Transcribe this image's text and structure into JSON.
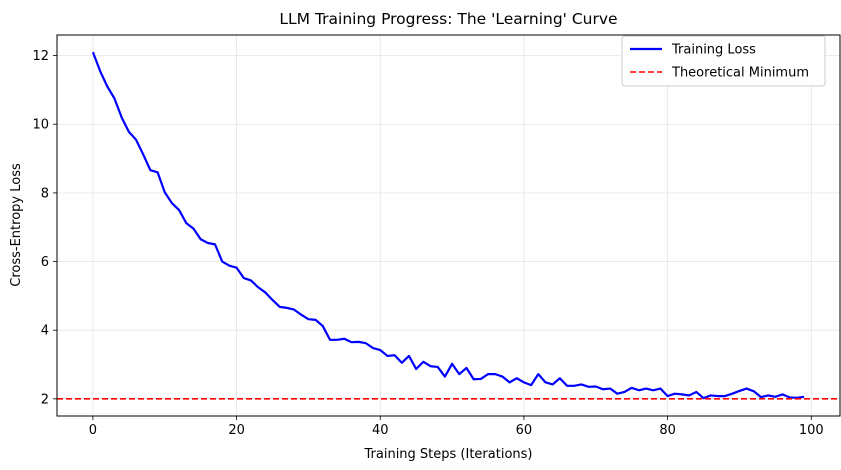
{
  "chart_data": {
    "type": "line",
    "title": "LLM Training Progress: The 'Learning' Curve",
    "xlabel": "Training Steps (Iterations)",
    "ylabel": "Cross-Entropy Loss",
    "xlim": [
      -5,
      104
    ],
    "ylim": [
      1.5,
      12.6
    ],
    "xticks": [
      0,
      20,
      40,
      60,
      80,
      100
    ],
    "yticks": [
      2,
      4,
      6,
      8,
      10,
      12
    ],
    "grid": true,
    "legend_position": "top-right",
    "series": [
      {
        "name": "Training Loss",
        "color": "#0000ff",
        "style": "solid",
        "x": [
          0,
          1,
          2,
          3,
          4,
          5,
          6,
          7,
          8,
          9,
          10,
          11,
          12,
          13,
          14,
          15,
          16,
          17,
          18,
          19,
          20,
          21,
          22,
          23,
          24,
          25,
          26,
          27,
          28,
          29,
          30,
          31,
          32,
          33,
          34,
          35,
          36,
          37,
          38,
          39,
          40,
          41,
          42,
          43,
          44,
          45,
          46,
          47,
          48,
          49,
          50,
          51,
          52,
          53,
          54,
          55,
          56,
          57,
          58,
          59,
          60,
          61,
          62,
          63,
          64,
          65,
          66,
          67,
          68,
          69,
          70,
          71,
          72,
          73,
          74,
          75,
          76,
          77,
          78,
          79,
          80,
          81,
          82,
          83,
          84,
          85,
          86,
          87,
          88,
          89,
          90,
          91,
          92,
          93,
          94,
          95,
          96,
          97,
          98,
          99
        ],
        "values": [
          12.1,
          11.55,
          11.1,
          10.75,
          10.2,
          9.78,
          9.55,
          9.12,
          8.66,
          8.6,
          8.02,
          7.7,
          7.5,
          7.12,
          6.96,
          6.65,
          6.54,
          6.5,
          6.0,
          5.88,
          5.82,
          5.52,
          5.45,
          5.25,
          5.1,
          4.88,
          4.68,
          4.65,
          4.6,
          4.45,
          4.32,
          4.3,
          4.12,
          3.72,
          3.72,
          3.75,
          3.65,
          3.66,
          3.62,
          3.48,
          3.42,
          3.25,
          3.27,
          3.05,
          3.25,
          2.87,
          3.08,
          2.95,
          2.93,
          2.65,
          3.02,
          2.72,
          2.9,
          2.57,
          2.58,
          2.72,
          2.72,
          2.65,
          2.48,
          2.6,
          2.48,
          2.4,
          2.72,
          2.48,
          2.42,
          2.6,
          2.38,
          2.38,
          2.42,
          2.35,
          2.36,
          2.28,
          2.3,
          2.15,
          2.2,
          2.32,
          2.25,
          2.3,
          2.25,
          2.3,
          2.08,
          2.15,
          2.13,
          2.1,
          2.2,
          2.02,
          2.1,
          2.08,
          2.08,
          2.15,
          2.23,
          2.3,
          2.22,
          2.05,
          2.1,
          2.06,
          2.13,
          2.04,
          2.03,
          2.06
        ]
      },
      {
        "name": "Theoretical Minimum",
        "color": "#ff0000",
        "style": "dashed",
        "y": 2.0
      }
    ]
  }
}
